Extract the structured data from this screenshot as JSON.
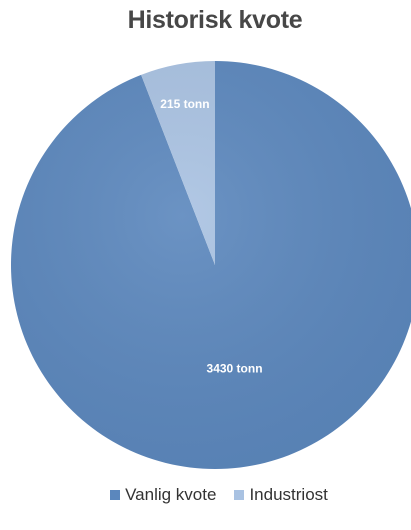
{
  "chart_data": {
    "type": "pie",
    "title": "Historisk kvote",
    "series": [
      {
        "name": "Vanlig kvote",
        "value": 3430,
        "label": "3430 tonn",
        "color": "#5b87bd"
      },
      {
        "name": "Industriost",
        "value": 215,
        "label": "215 tonn",
        "color": "#a9c2e2"
      }
    ],
    "legend_position": "bottom"
  }
}
